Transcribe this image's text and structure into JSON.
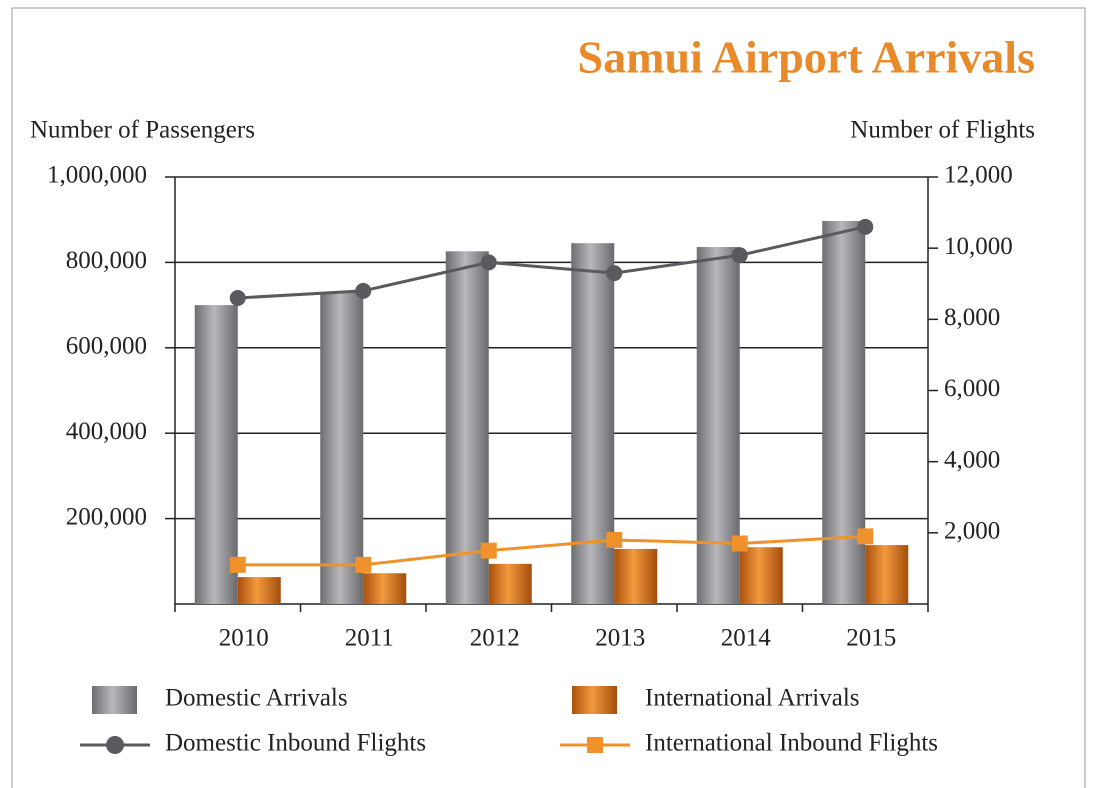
{
  "chart_data": {
    "type": "bar",
    "title": "Samui Airport Arrivals",
    "y_label": "Number of Passengers",
    "y2_label": "Number of Flights",
    "categories": [
      "2010",
      "2011",
      "2012",
      "2013",
      "2014",
      "2015"
    ],
    "series": [
      {
        "name": "Domestic Arrivals",
        "type": "bar",
        "color": "#8a8a8e",
        "values": [
          700000,
          730000,
          826000,
          845000,
          836000,
          897000
        ]
      },
      {
        "name": "International Arrivals",
        "type": "bar",
        "color": "#d9731a",
        "values": [
          63000,
          72000,
          94000,
          129000,
          133000,
          138000
        ]
      },
      {
        "name": "Domestic Inbound Flights",
        "type": "line",
        "axis": "y2",
        "color": "#5a5a5e",
        "values": [
          8600,
          8800,
          9600,
          9300,
          9800,
          10600
        ]
      },
      {
        "name": "International Inbound Flights",
        "type": "line",
        "axis": "y2",
        "color": "#f0922b",
        "values": [
          1100,
          1100,
          1500,
          1800,
          1700,
          1900
        ]
      }
    ],
    "ylim": [
      0,
      1000000
    ],
    "yticks": [
      {
        "value": 200000,
        "label": "200,000"
      },
      {
        "value": 400000,
        "label": "400,000"
      },
      {
        "value": 600000,
        "label": "600,000"
      },
      {
        "value": 800000,
        "label": "800,000"
      },
      {
        "value": 1000000,
        "label": "1,000,000"
      }
    ],
    "y2lim": [
      0,
      12000
    ],
    "y2ticks": [
      {
        "value": 2000,
        "label": "2,000"
      },
      {
        "value": 4000,
        "label": "4,000"
      },
      {
        "value": 6000,
        "label": "6,000"
      },
      {
        "value": 8000,
        "label": "8,000"
      },
      {
        "value": 10000,
        "label": "10,000"
      },
      {
        "value": 12000,
        "label": "12,000"
      }
    ],
    "grid": true
  }
}
